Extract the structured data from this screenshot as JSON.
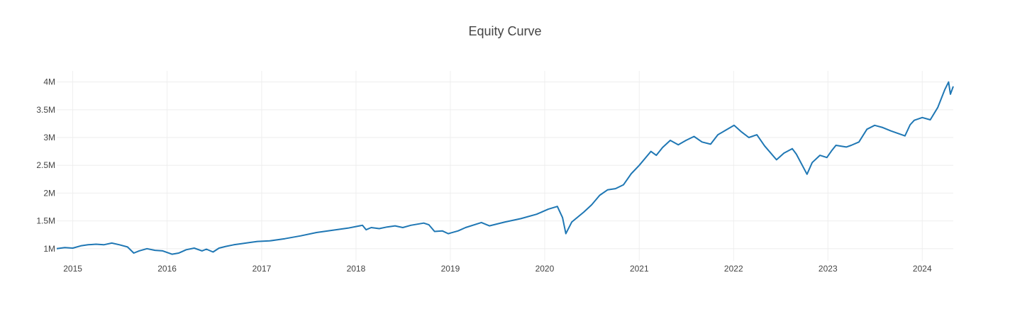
{
  "chart_data": {
    "type": "line",
    "title": "Equity Curve",
    "xlabel": "",
    "ylabel": "",
    "xlim": [
      "2014-10-31",
      "2024-04-30"
    ],
    "ylim": [
      780000,
      4200000
    ],
    "grid": true,
    "legend": "none",
    "x_ticks": [
      "2015",
      "2016",
      "2017",
      "2018",
      "2019",
      "2020",
      "2021",
      "2022",
      "2023",
      "2024"
    ],
    "y_ticks": [
      {
        "value": 1000000,
        "label": "1M"
      },
      {
        "value": 1500000,
        "label": "1.5M"
      },
      {
        "value": 2000000,
        "label": "2M"
      },
      {
        "value": 2500000,
        "label": "2.5M"
      },
      {
        "value": 3000000,
        "label": "3M"
      },
      {
        "value": 3500000,
        "label": "3.5M"
      },
      {
        "value": 4000000,
        "label": "4M"
      }
    ],
    "series": [
      {
        "color": "#1f77b4",
        "x": [
          "2014-10-31",
          "2014-12-01",
          "2015-01-01",
          "2015-02-01",
          "2015-03-01",
          "2015-04-01",
          "2015-05-01",
          "2015-06-01",
          "2015-07-01",
          "2015-08-01",
          "2015-08-25",
          "2015-09-15",
          "2015-10-15",
          "2015-11-15",
          "2015-12-15",
          "2016-01-20",
          "2016-02-15",
          "2016-03-15",
          "2016-04-15",
          "2016-05-15",
          "2016-06-01",
          "2016-06-27",
          "2016-07-20",
          "2016-08-15",
          "2016-09-15",
          "2016-10-15",
          "2016-11-15",
          "2016-12-15",
          "2017-02-01",
          "2017-04-01",
          "2017-06-01",
          "2017-08-01",
          "2017-10-01",
          "2017-12-01",
          "2018-01-26",
          "2018-02-09",
          "2018-03-01",
          "2018-04-01",
          "2018-05-01",
          "2018-06-01",
          "2018-07-01",
          "2018-08-01",
          "2018-09-20",
          "2018-10-10",
          "2018-11-01",
          "2018-12-01",
          "2018-12-24",
          "2019-01-31",
          "2019-03-01",
          "2019-05-01",
          "2019-06-01",
          "2019-08-01",
          "2019-10-01",
          "2019-12-01",
          "2020-01-15",
          "2020-02-19",
          "2020-03-10",
          "2020-03-23",
          "2020-04-15",
          "2020-06-01",
          "2020-07-01",
          "2020-08-01",
          "2020-09-01",
          "2020-10-01",
          "2020-11-01",
          "2020-12-01",
          "2021-01-01",
          "2021-02-15",
          "2021-03-08",
          "2021-04-01",
          "2021-05-01",
          "2021-06-01",
          "2021-07-01",
          "2021-08-01",
          "2021-09-01",
          "2021-10-04",
          "2021-11-01",
          "2021-12-01",
          "2022-01-03",
          "2022-02-01",
          "2022-03-01",
          "2022-04-01",
          "2022-05-01",
          "2022-06-16",
          "2022-07-15",
          "2022-08-16",
          "2022-09-01",
          "2022-10-12",
          "2022-11-01",
          "2022-12-01",
          "2022-12-28",
          "2023-01-15",
          "2023-02-01",
          "2023-03-13",
          "2023-04-01",
          "2023-05-01",
          "2023-06-01",
          "2023-07-01",
          "2023-08-01",
          "2023-09-01",
          "2023-10-26",
          "2023-11-15",
          "2023-12-01",
          "2024-01-01",
          "2024-02-01",
          "2024-03-01",
          "2024-03-28",
          "2024-04-12",
          "2024-04-19",
          "2024-04-30"
        ],
        "y": [
          1000000,
          1020000,
          1010000,
          1050000,
          1070000,
          1080000,
          1070000,
          1100000,
          1070000,
          1030000,
          920000,
          960000,
          1000000,
          970000,
          960000,
          900000,
          920000,
          980000,
          1010000,
          960000,
          990000,
          940000,
          1010000,
          1040000,
          1070000,
          1090000,
          1110000,
          1130000,
          1140000,
          1180000,
          1230000,
          1290000,
          1330000,
          1370000,
          1420000,
          1340000,
          1380000,
          1360000,
          1390000,
          1410000,
          1380000,
          1420000,
          1460000,
          1430000,
          1310000,
          1320000,
          1270000,
          1320000,
          1380000,
          1470000,
          1410000,
          1480000,
          1540000,
          1620000,
          1710000,
          1760000,
          1560000,
          1270000,
          1480000,
          1660000,
          1790000,
          1960000,
          2060000,
          2080000,
          2150000,
          2350000,
          2500000,
          2750000,
          2680000,
          2820000,
          2950000,
          2870000,
          2950000,
          3020000,
          2920000,
          2880000,
          3050000,
          3130000,
          3220000,
          3100000,
          3000000,
          3050000,
          2850000,
          2600000,
          2720000,
          2800000,
          2700000,
          2340000,
          2550000,
          2680000,
          2640000,
          2760000,
          2860000,
          2830000,
          2860000,
          2920000,
          3150000,
          3220000,
          3180000,
          3120000,
          3030000,
          3230000,
          3310000,
          3360000,
          3320000,
          3540000,
          3860000,
          4000000,
          3780000,
          3920000
        ]
      }
    ]
  }
}
